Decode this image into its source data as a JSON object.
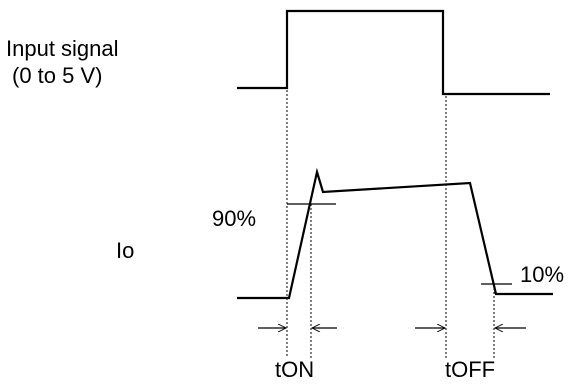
{
  "labels": {
    "input_signal_line1": "Input signal",
    "input_signal_line2": "(0 to 5 V)",
    "io": "Io",
    "pct_90": "90%",
    "pct_10": "10%",
    "t_on": "tON",
    "t_off": "tOFF"
  },
  "colors": {
    "stroke": "#000000",
    "background": "#ffffff"
  }
}
